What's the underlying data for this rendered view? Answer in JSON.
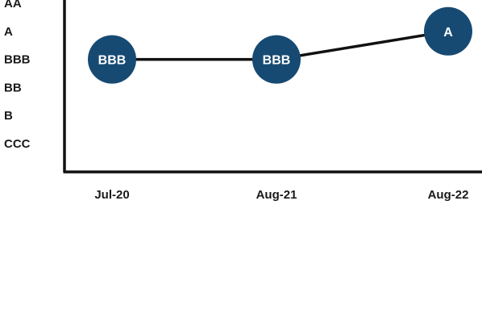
{
  "chart_data": {
    "type": "line",
    "y_categories": [
      "AA",
      "A",
      "BBB",
      "BB",
      "B",
      "CCC"
    ],
    "x": [
      "Jul-20",
      "Aug-21",
      "Aug-22"
    ],
    "series": [
      {
        "values": [
          "BBB",
          "BBB",
          "A"
        ],
        "point_labels": [
          "BBB",
          "BBB",
          "A"
        ]
      }
    ],
    "grid": false,
    "legend": "none",
    "colors": {
      "marker": "#174a72",
      "line": "#111111",
      "axis": "#111111",
      "label": "#ffffff",
      "tick_text": "#1a1a1a"
    }
  }
}
